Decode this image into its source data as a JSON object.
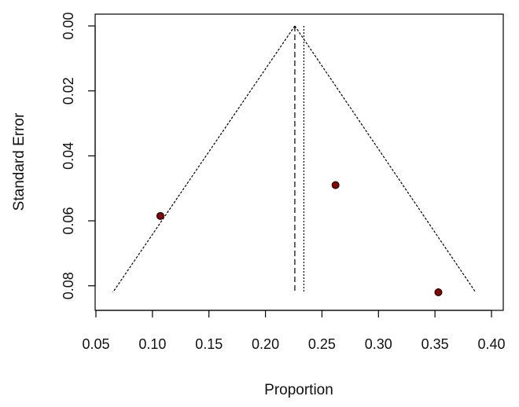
{
  "chart_data": {
    "type": "scatter",
    "title": "",
    "xlabel": "Proportion",
    "ylabel": "Standard Error",
    "xlim": [
      0.05,
      0.4
    ],
    "ylim": [
      0.0,
      0.082
    ],
    "y_reversed": true,
    "x_ticks": [
      "0.05",
      "0.10",
      "0.15",
      "0.20",
      "0.25",
      "0.30",
      "0.35",
      "0.40"
    ],
    "y_ticks": [
      "0.00",
      "0.02",
      "0.04",
      "0.06",
      "0.08"
    ],
    "grid": false,
    "points": [
      {
        "x": 0.107,
        "y": 0.0585
      },
      {
        "x": 0.262,
        "y": 0.049
      },
      {
        "x": 0.353,
        "y": 0.082
      }
    ],
    "point_color": "#8b0000",
    "funnel": {
      "apex": {
        "x": 0.226,
        "y": 0.0
      },
      "left_bottom": {
        "x": 0.065,
        "y": 0.082
      },
      "right_bottom": {
        "x": 0.386,
        "y": 0.082
      }
    },
    "reference_lines": [
      {
        "style": "dashed",
        "x": 0.226
      },
      {
        "style": "dotted",
        "x": 0.234
      }
    ]
  }
}
